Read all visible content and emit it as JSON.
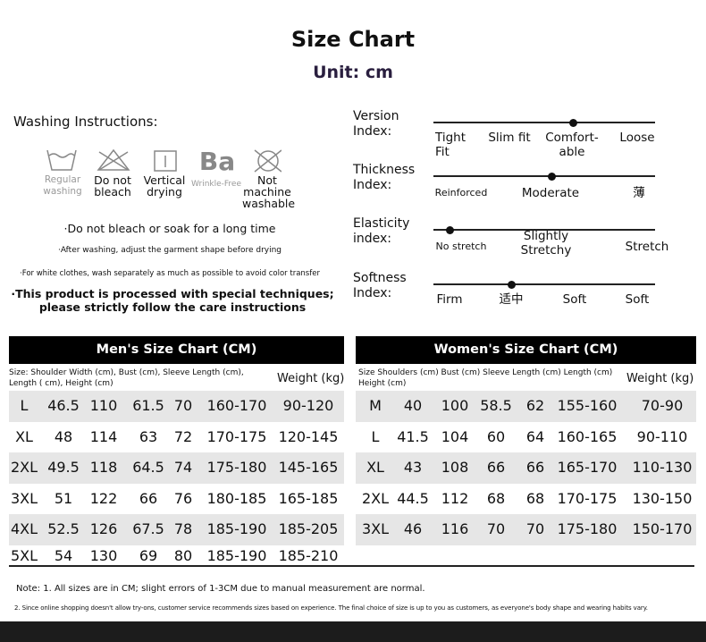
{
  "header": {
    "title": "Size Chart",
    "unit": "Unit: cm"
  },
  "washing": {
    "title": "Washing Instructions:",
    "icon_text": "Ba",
    "icons": [
      "Regular washing",
      "Do not bleach",
      "Vertical drying",
      "Wrinkle-Free",
      "Not machine washable"
    ],
    "notes": [
      "·Do not bleach or soak for a long time",
      "·After washing, adjust the garment shape before drying",
      "·For white clothes, wash separately as much as possible to avoid color transfer",
      "·This product is processed with special techniques; please strictly follow the care instructions"
    ]
  },
  "indices": [
    {
      "label": "Version Index:",
      "options": [
        "Tight Fit",
        "Slim fit",
        "Comfort-able",
        "Loose"
      ]
    },
    {
      "label": "Thickness Index:",
      "options": [
        "Reinforced",
        "Moderate",
        "薄"
      ]
    },
    {
      "label": "Elasticity index:",
      "options": [
        "No stretch",
        "Slightly Stretchy",
        "Stretch"
      ]
    },
    {
      "label": "Softness Index:",
      "options": [
        "Firm",
        "适中",
        "Soft",
        "Soft"
      ]
    }
  ],
  "men": {
    "title": "Men's Size Chart (CM)",
    "columns": "Size: Shoulder Width (cm), Bust (cm), Sleeve Length (cm), Length ( cm), Height (cm)",
    "weight": "Weight (kg)",
    "rows": [
      [
        "L",
        "46.5",
        "110",
        "61.5",
        "70",
        "160-170",
        "90-120"
      ],
      [
        "XL",
        "48",
        "114",
        "63",
        "72",
        "170-175",
        "120-145"
      ],
      [
        "2XL",
        "49.5",
        "118",
        "64.5",
        "74",
        "175-180",
        "145-165"
      ],
      [
        "3XL",
        "51",
        "122",
        "66",
        "76",
        "180-185",
        "165-185"
      ],
      [
        "4XL",
        "52.5",
        "126",
        "67.5",
        "78",
        "185-190",
        "185-205"
      ],
      [
        "5XL",
        "54",
        "130",
        "69",
        "80",
        "185-190",
        "185-210"
      ]
    ]
  },
  "women": {
    "title": "Women's Size Chart (CM)",
    "columns": "Size Shoulders (cm) Bust (cm) Sleeve Length (cm) Length (cm) Height (cm)",
    "weight": "Weight (kg)",
    "rows": [
      [
        "M",
        "40",
        "100",
        "58.5",
        "62",
        "155-160",
        "70-90"
      ],
      [
        "L",
        "41.5",
        "104",
        "60",
        "64",
        "160-165",
        "90-110"
      ],
      [
        "XL",
        "43",
        "108",
        "66",
        "66",
        "165-170",
        "110-130"
      ],
      [
        "2XL",
        "44.5",
        "112",
        "68",
        "68",
        "170-175",
        "130-150"
      ],
      [
        "3XL",
        "46",
        "116",
        "70",
        "70",
        "175-180",
        "150-170"
      ]
    ]
  },
  "notes": [
    "Note: 1. All sizes are in CM; slight errors of 1-3CM due to manual measurement are normal.",
    "2. Since online shopping doesn't allow try-ons, customer service recommends sizes based on experience. The final choice of size is up to you as customers, as everyone's body shape and wearing habits vary."
  ]
}
